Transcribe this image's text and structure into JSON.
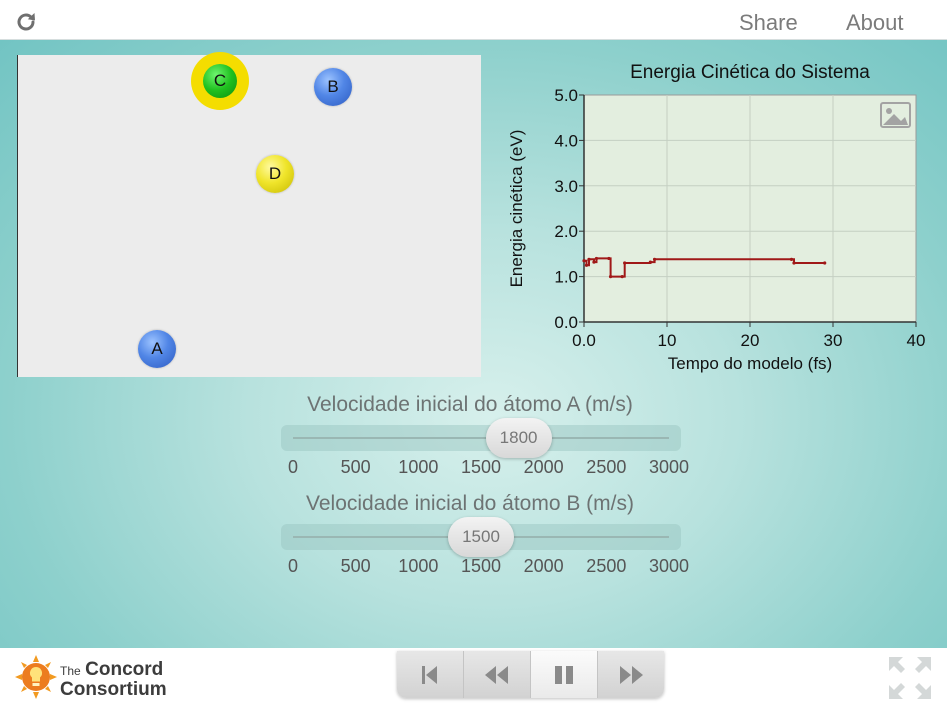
{
  "topbar": {
    "share_label": "Share",
    "about_label": "About",
    "reload_icon": "reload-icon"
  },
  "model": {
    "atoms": [
      {
        "label": "C",
        "color": "green",
        "highlighted": true
      },
      {
        "label": "B",
        "color": "blue"
      },
      {
        "label": "D",
        "color": "yellow"
      },
      {
        "label": "A",
        "color": "blue"
      }
    ]
  },
  "chart": {
    "title": "Energia Cinética do Sistema",
    "ylabel": "Energia cinética (eV)",
    "xlabel": "Tempo do modelo (fs)",
    "snapshot_icon": "image-icon"
  },
  "chart_data": {
    "type": "line",
    "title": "Energia Cinética do Sistema",
    "xlabel": "Tempo do modelo (fs)",
    "ylabel": "Energia cinética (eV)",
    "xlim": [
      0,
      40
    ],
    "ylim": [
      0,
      5
    ],
    "x_ticks": [
      "0.0",
      "10",
      "20",
      "30",
      "40"
    ],
    "y_ticks": [
      "0.0",
      "1.0",
      "2.0",
      "3.0",
      "4.0",
      "5.0"
    ],
    "grid": true,
    "color": "#a01818",
    "series": [
      {
        "x": [
          0,
          0.3,
          0.6,
          1.2,
          1.5,
          3.0,
          3.2,
          4.6,
          4.9,
          8.0,
          8.5,
          25.0,
          25.3,
          29.0
        ],
        "y": [
          1.35,
          1.25,
          1.38,
          1.32,
          1.4,
          1.4,
          1.0,
          1.0,
          1.3,
          1.32,
          1.38,
          1.38,
          1.3,
          1.3
        ]
      }
    ]
  },
  "sliders": [
    {
      "label": "Velocidade inicial do átomo A (m/s)",
      "value": 1800,
      "display": "1800",
      "min": 0,
      "max": 3000,
      "ticks": [
        "0",
        "500",
        "1000",
        "1500",
        "2000",
        "2500",
        "3000"
      ]
    },
    {
      "label": "Velocidade inicial do átomo B (m/s)",
      "value": 1500,
      "display": "1500",
      "min": 0,
      "max": 3000,
      "ticks": [
        "0",
        "500",
        "1000",
        "1500",
        "2000",
        "2500",
        "3000"
      ]
    }
  ],
  "footer": {
    "logo_the": "The",
    "logo_concord": "Concord",
    "logo_consortium": "Consortium",
    "controls": [
      "go-to-start-icon",
      "step-back-icon",
      "pause-icon",
      "step-forward-icon"
    ],
    "fullscreen_icon": "fullscreen-icon"
  }
}
